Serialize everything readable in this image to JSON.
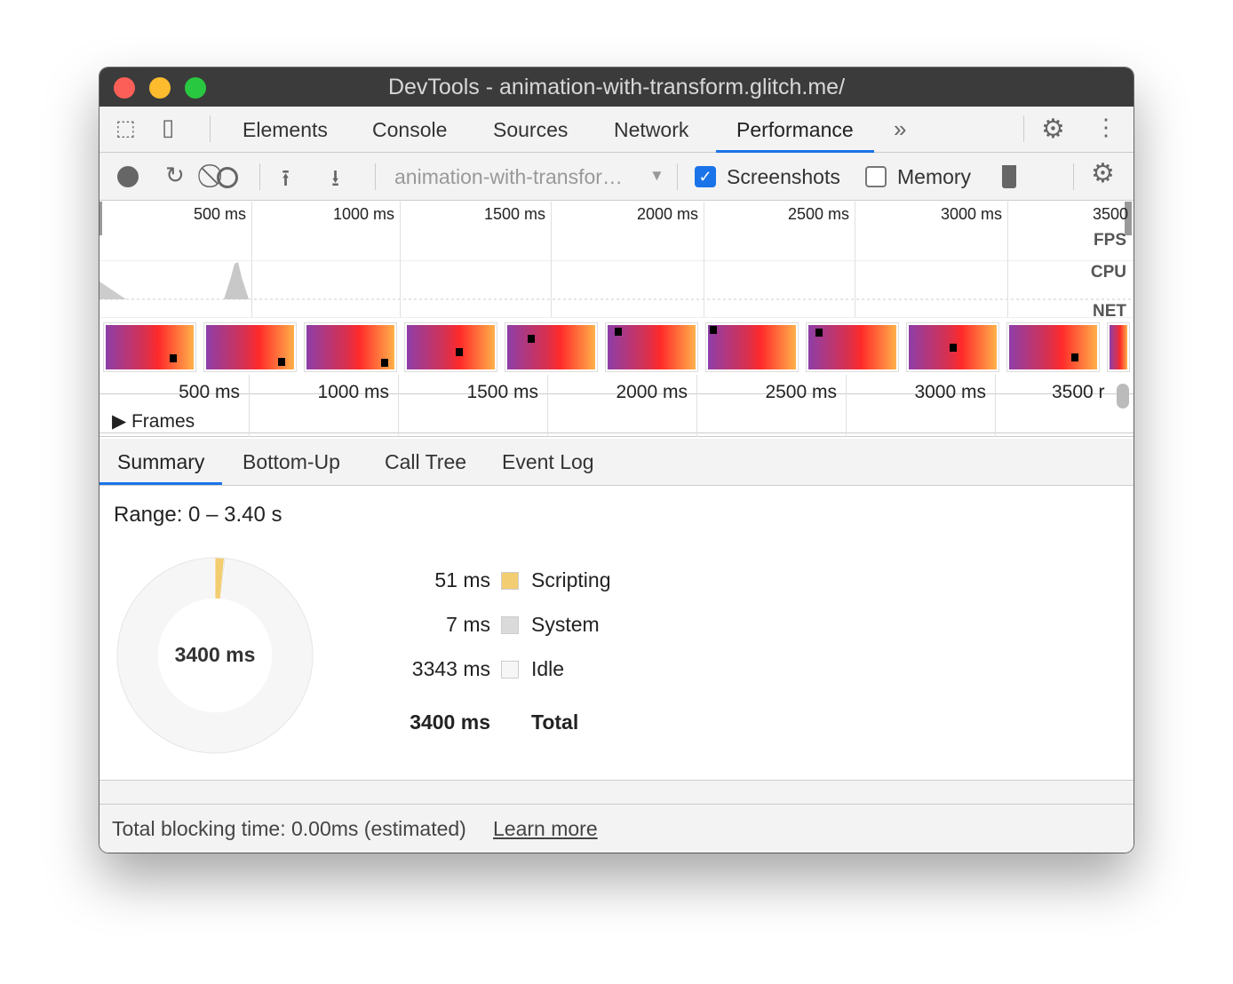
{
  "window": {
    "title": "DevTools - animation-with-transform.glitch.me/"
  },
  "main_tabs": [
    {
      "label": "Elements"
    },
    {
      "label": "Console"
    },
    {
      "label": "Sources"
    },
    {
      "label": "Network"
    },
    {
      "label": "Performance",
      "active": true
    }
  ],
  "toolbar": {
    "profile_select": "animation-with-transfor…",
    "screenshots_label": "Screenshots",
    "screenshots_checked": true,
    "memory_label": "Memory",
    "memory_checked": false
  },
  "overview": {
    "ticks": [
      "500 ms",
      "1000 ms",
      "1500 ms",
      "2000 ms",
      "2500 ms",
      "3000 ms",
      "3500"
    ],
    "tracks": [
      "FPS",
      "CPU",
      "NET"
    ]
  },
  "timeline": {
    "ticks": [
      "500 ms",
      "1000 ms",
      "1500 ms",
      "2000 ms",
      "2500 ms",
      "3000 ms",
      "3500 r"
    ],
    "frames_label": "Frames"
  },
  "detail_tabs": [
    {
      "label": "Summary",
      "active": true
    },
    {
      "label": "Bottom-Up"
    },
    {
      "label": "Call Tree"
    },
    {
      "label": "Event Log"
    }
  ],
  "summary": {
    "range": "Range: 0 – 3.40 s",
    "center": "3400 ms",
    "items": [
      {
        "value": "51 ms",
        "label": "Scripting",
        "ms": 51,
        "color": "#f2cd72"
      },
      {
        "value": "7 ms",
        "label": "System",
        "ms": 7,
        "color": "#dadada"
      },
      {
        "value": "3343 ms",
        "label": "Idle",
        "ms": 3343,
        "color": "#f6f6f6"
      }
    ],
    "total": {
      "value": "3400 ms",
      "label": "Total"
    }
  },
  "footer": {
    "text": "Total blocking time: 0.00ms (estimated)",
    "link": "Learn more"
  },
  "colors": {
    "accent": "#1a73e8",
    "scripting": "#f2cd72",
    "checkbox": "#1a73e8"
  }
}
